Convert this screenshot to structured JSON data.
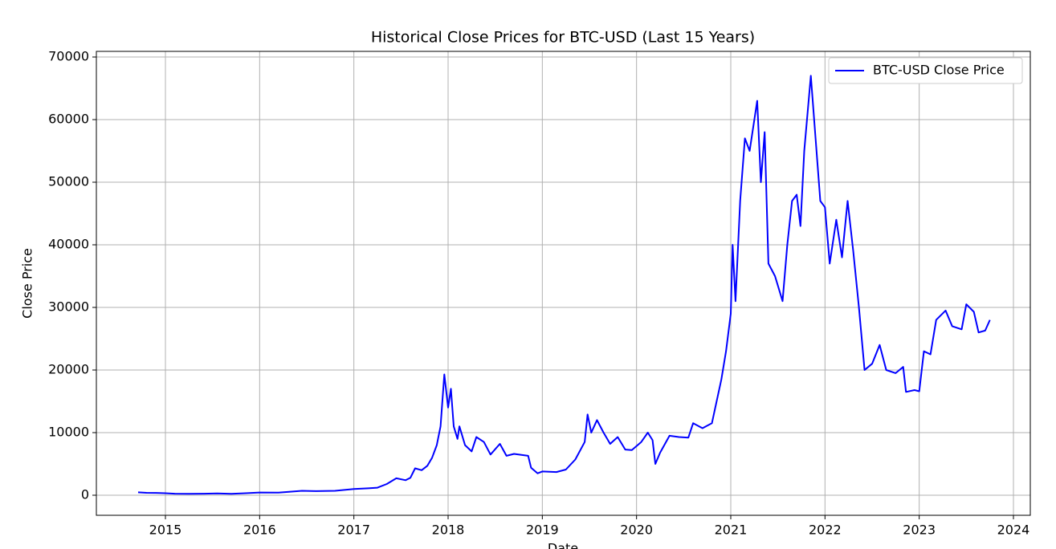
{
  "chart_data": {
    "type": "line",
    "title": "Historical Close Prices for BTC-USD (Last 15 Years)",
    "x_label": "Date",
    "y_label": "Close Price",
    "xlim": [
      2014.267,
      2024.179
    ],
    "xticks": [
      2015,
      2016,
      2017,
      2018,
      2019,
      2020,
      2021,
      2022,
      2023,
      2024
    ],
    "ylim": [
      -3205,
      70900
    ],
    "yticks": [
      0,
      10000,
      20000,
      30000,
      40000,
      50000,
      60000,
      70000
    ],
    "grid": true,
    "legend": "upper right",
    "series": [
      {
        "name": "BTC-USD Close Price",
        "color": "#0000ff",
        "x": [
          2014.71,
          2014.8,
          2014.9,
          2015.0,
          2015.1,
          2015.25,
          2015.4,
          2015.55,
          2015.7,
          2015.85,
          2016.0,
          2016.2,
          2016.45,
          2016.6,
          2016.8,
          2017.0,
          2017.15,
          2017.25,
          2017.35,
          2017.45,
          2017.55,
          2017.6,
          2017.65,
          2017.72,
          2017.78,
          2017.83,
          2017.88,
          2017.92,
          2017.96,
          2018.0,
          2018.03,
          2018.06,
          2018.1,
          2018.12,
          2018.18,
          2018.25,
          2018.3,
          2018.38,
          2018.45,
          2018.55,
          2018.62,
          2018.7,
          2018.85,
          2018.88,
          2018.95,
          2019.0,
          2019.15,
          2019.25,
          2019.35,
          2019.45,
          2019.48,
          2019.52,
          2019.58,
          2019.65,
          2019.72,
          2019.8,
          2019.88,
          2019.95,
          2020.05,
          2020.12,
          2020.17,
          2020.2,
          2020.25,
          2020.35,
          2020.45,
          2020.55,
          2020.6,
          2020.7,
          2020.8,
          2020.85,
          2020.9,
          2020.95,
          2021.0,
          2021.02,
          2021.05,
          2021.1,
          2021.15,
          2021.2,
          2021.28,
          2021.32,
          2021.36,
          2021.4,
          2021.47,
          2021.55,
          2021.6,
          2021.65,
          2021.7,
          2021.74,
          2021.78,
          2021.85,
          2021.9,
          2021.95,
          2022.0,
          2022.05,
          2022.12,
          2022.18,
          2022.24,
          2022.3,
          2022.36,
          2022.42,
          2022.5,
          2022.58,
          2022.65,
          2022.75,
          2022.83,
          2022.86,
          2022.95,
          2023.0,
          2023.05,
          2023.12,
          2023.18,
          2023.28,
          2023.35,
          2023.45,
          2023.5,
          2023.58,
          2023.63,
          2023.7,
          2023.75
        ],
        "values": [
          457,
          380,
          370,
          315,
          240,
          230,
          240,
          280,
          235,
          320,
          430,
          420,
          700,
          650,
          700,
          990,
          1100,
          1200,
          1800,
          2700,
          2400,
          2800,
          4300,
          4000,
          4700,
          6000,
          8000,
          11000,
          19300,
          14000,
          17000,
          11000,
          9000,
          11000,
          8000,
          7000,
          9300,
          8500,
          6500,
          8200,
          6300,
          6600,
          6300,
          4400,
          3500,
          3800,
          3700,
          4100,
          5700,
          8500,
          12900,
          10000,
          12000,
          10000,
          8200,
          9300,
          7300,
          7200,
          8500,
          10000,
          8800,
          5000,
          6800,
          9500,
          9300,
          9200,
          11500,
          10700,
          11500,
          15000,
          18500,
          23000,
          29000,
          40000,
          31000,
          47000,
          57000,
          55000,
          63000,
          50000,
          58000,
          37000,
          35000,
          31000,
          40000,
          47000,
          48000,
          43000,
          55000,
          67000,
          57000,
          47000,
          46000,
          37000,
          44000,
          38000,
          47000,
          39000,
          30000,
          20000,
          21000,
          24000,
          20000,
          19500,
          20500,
          16500,
          16800,
          16600,
          23000,
          22500,
          28000,
          29500,
          27000,
          26500,
          30500,
          29300,
          26000,
          26300,
          28000
        ]
      }
    ]
  }
}
